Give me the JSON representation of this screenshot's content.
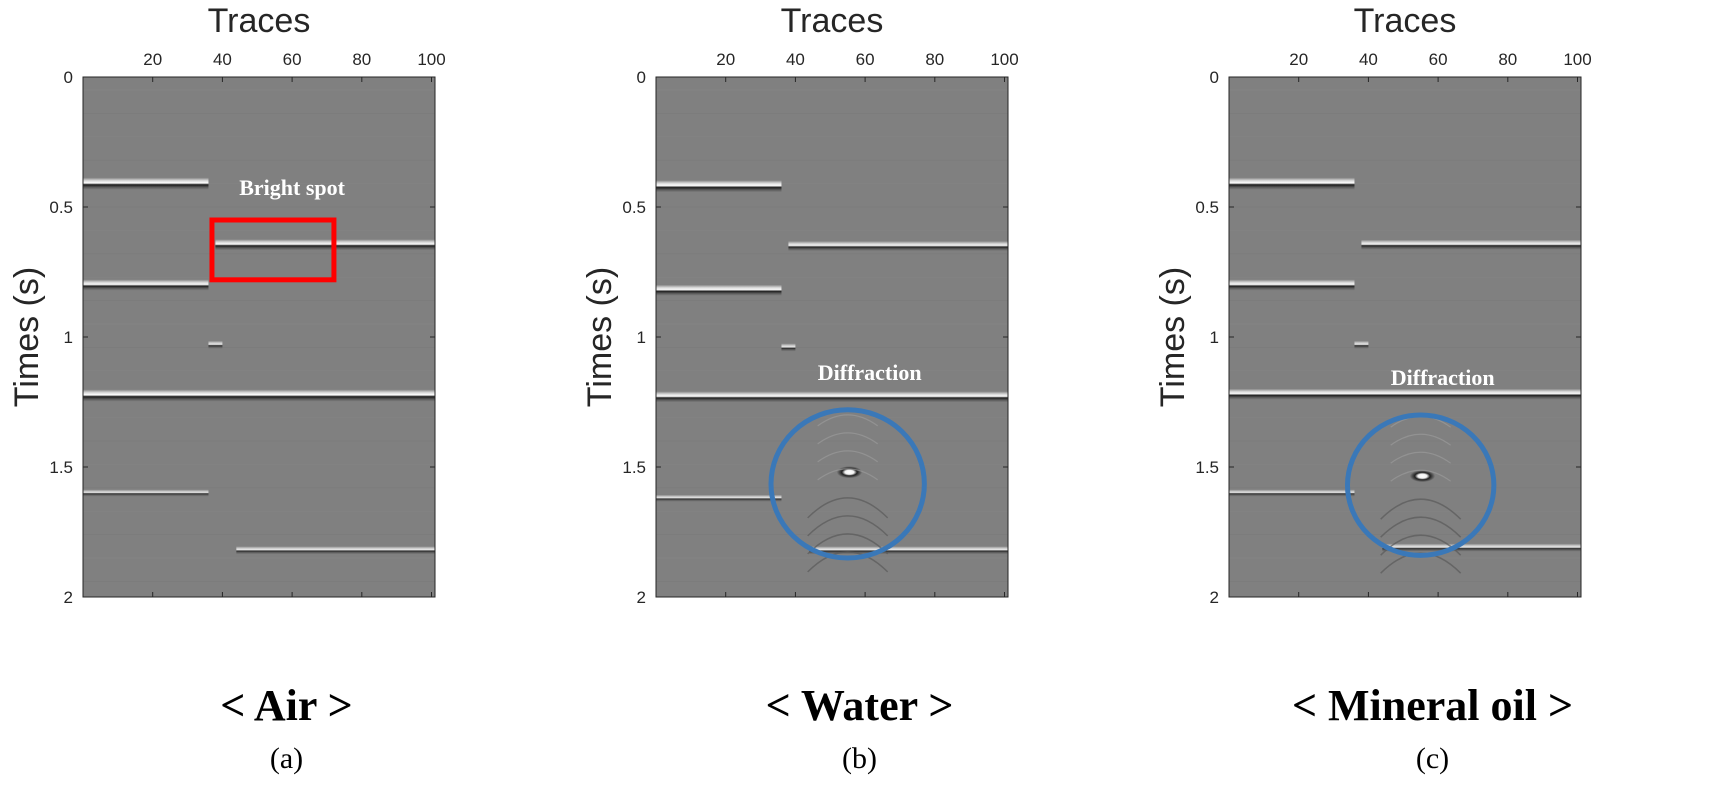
{
  "chart_data": [
    {
      "type": "heatmap",
      "title": "",
      "xlabel": "Traces",
      "ylabel": "Times (s)",
      "xlim": [
        0,
        101
      ],
      "ylim": [
        2,
        0
      ],
      "xticks": [
        20,
        40,
        60,
        80,
        100
      ],
      "yticks": [
        0,
        0.5,
        1,
        1.5,
        2
      ],
      "xtick_labels": [
        "20",
        "40",
        "60",
        "80",
        "100"
      ],
      "ytick_labels": [
        "0",
        "0.5",
        "1",
        "1.5",
        "2"
      ],
      "colormap": "gray",
      "background_color": "#808080",
      "medium_label": "< Air >",
      "panel_label": "(a)",
      "reflectors": [
        {
          "x": [
            0,
            36
          ],
          "t": 0.41,
          "strength": 1.0
        },
        {
          "x": [
            38,
            101
          ],
          "t": 0.645,
          "strength": 0.9
        },
        {
          "x": [
            0,
            36
          ],
          "t": 0.8,
          "strength": 0.9
        },
        {
          "x": [
            36,
            40
          ],
          "t": 1.03,
          "strength": 0.6
        },
        {
          "x": [
            0,
            101
          ],
          "t": 1.225,
          "strength": 1.0
        },
        {
          "x": [
            0,
            36
          ],
          "t": 1.6,
          "strength": 0.5
        },
        {
          "x": [
            44,
            101
          ],
          "t": 1.82,
          "strength": 0.6
        }
      ],
      "annotations": [
        {
          "type": "rectangle",
          "label": "Bright spot",
          "color": "#ff0000",
          "x": [
            37,
            72
          ],
          "t": [
            0.55,
            0.78
          ]
        }
      ]
    },
    {
      "type": "heatmap",
      "title": "",
      "xlabel": "Traces",
      "ylabel": "Times (s)",
      "xlim": [
        0,
        101
      ],
      "ylim": [
        2,
        0
      ],
      "xticks": [
        20,
        40,
        60,
        80,
        100
      ],
      "yticks": [
        0,
        0.5,
        1,
        1.5,
        2
      ],
      "xtick_labels": [
        "20",
        "40",
        "60",
        "80",
        "100"
      ],
      "ytick_labels": [
        "0",
        "0.5",
        "1",
        "1.5",
        "2"
      ],
      "colormap": "gray",
      "background_color": "#808080",
      "medium_label": "< Water >",
      "panel_label": "(b)",
      "reflectors": [
        {
          "x": [
            0,
            36
          ],
          "t": 0.42,
          "strength": 1.0
        },
        {
          "x": [
            38,
            101
          ],
          "t": 0.65,
          "strength": 0.8
        },
        {
          "x": [
            0,
            36
          ],
          "t": 0.82,
          "strength": 0.9
        },
        {
          "x": [
            36,
            40
          ],
          "t": 1.04,
          "strength": 0.6
        },
        {
          "x": [
            0,
            101
          ],
          "t": 1.23,
          "strength": 0.9
        },
        {
          "x": [
            0,
            36
          ],
          "t": 1.62,
          "strength": 0.5
        },
        {
          "x": [
            44,
            101
          ],
          "t": 1.82,
          "strength": 0.6
        },
        {
          "x": [
            53,
            58
          ],
          "t": 1.52,
          "strength": 1.0
        }
      ],
      "annotations": [
        {
          "type": "circle",
          "label": "Diffraction",
          "color": "#3a78b8",
          "x_center": 55,
          "t_center": 1.565,
          "rx_traces": 22,
          "rt_seconds": 0.285
        }
      ]
    },
    {
      "type": "heatmap",
      "title": "",
      "xlabel": "Traces",
      "ylabel": "Times (s)",
      "xlim": [
        0,
        101
      ],
      "ylim": [
        2,
        0
      ],
      "xticks": [
        20,
        40,
        60,
        80,
        100
      ],
      "yticks": [
        0,
        0.5,
        1,
        1.5,
        2
      ],
      "xtick_labels": [
        "20",
        "40",
        "60",
        "80",
        "100"
      ],
      "ytick_labels": [
        "0",
        "0.5",
        "1",
        "1.5",
        "2"
      ],
      "colormap": "gray",
      "background_color": "#808080",
      "medium_label": "< Mineral oil >",
      "panel_label": "(c)",
      "reflectors": [
        {
          "x": [
            0,
            36
          ],
          "t": 0.41,
          "strength": 1.0
        },
        {
          "x": [
            38,
            101
          ],
          "t": 0.645,
          "strength": 0.8
        },
        {
          "x": [
            0,
            36
          ],
          "t": 0.8,
          "strength": 0.9
        },
        {
          "x": [
            36,
            40
          ],
          "t": 1.03,
          "strength": 0.6
        },
        {
          "x": [
            0,
            101
          ],
          "t": 1.22,
          "strength": 0.9
        },
        {
          "x": [
            0,
            36
          ],
          "t": 1.6,
          "strength": 0.5
        },
        {
          "x": [
            44,
            101
          ],
          "t": 1.81,
          "strength": 0.6
        },
        {
          "x": [
            53,
            58
          ],
          "t": 1.535,
          "strength": 1.0
        }
      ],
      "annotations": [
        {
          "type": "circle",
          "label": "Diffraction",
          "color": "#3a78b8",
          "x_center": 55,
          "t_center": 1.57,
          "rx_traces": 21,
          "rt_seconds": 0.27
        }
      ]
    }
  ]
}
